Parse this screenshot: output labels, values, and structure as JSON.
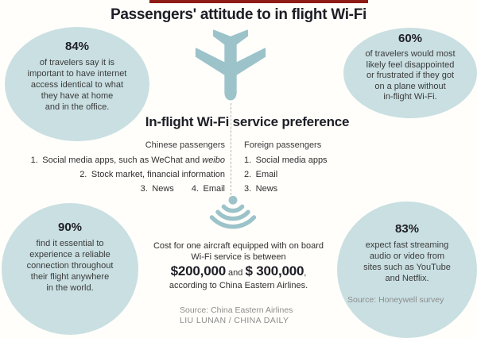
{
  "title": "Passengers' attitude to in flight Wi-Fi",
  "colors": {
    "accent_red": "#8e1b14",
    "bubble_blue": "#c9dfe2",
    "icon_teal": "#9cc3ca",
    "heading_dark": "#1d1e26",
    "source_gray": "#8d8d8d"
  },
  "stats": {
    "tl": {
      "percent": "84%",
      "lines": [
        "of travelers say it is",
        "important to have internet",
        "access identical to what",
        "they have at home",
        "and in the office."
      ]
    },
    "tr": {
      "percent": "60%",
      "lines": [
        "of travelers would most",
        "likely feel disappointed",
        "or frustrated if they got",
        "on a plane without",
        "in-flight Wi-Fi."
      ]
    },
    "bl": {
      "percent": "90%",
      "lines": [
        "find it essential to",
        "experience a reliable",
        "connection throughout",
        "their flight anywhere",
        "in the world."
      ]
    },
    "br": {
      "percent": "83%",
      "lines": [
        "expect fast streaming",
        "audio or video from",
        "sites such as YouTube",
        "and Netflix."
      ],
      "source": "Source: Honeywell survey"
    }
  },
  "preference": {
    "heading": "In-flight Wi-Fi service preference",
    "chinese": {
      "header": "Chinese passengers",
      "item1_pre": "1. Social media apps, such as WeChat and ",
      "item1_em": "weibo",
      "item2": "2. Stock market, financial information",
      "item3a": "3. News",
      "item3b": "4. Email"
    },
    "foreign": {
      "header": "Foreign passengers",
      "items": [
        "1. Social media apps",
        "2. Email",
        "3. News"
      ]
    }
  },
  "cost": {
    "line1": "Cost for one aircraft equipped with on board",
    "line2": "Wi-Fi service is between",
    "amount1": "$200,000",
    "conjunction": " and ",
    "amount2": "$ 300,000",
    "punct": ",",
    "line3": "according to China Eastern Airlines."
  },
  "footer": {
    "source": "Source: China Eastern Airlines",
    "credit": "LIU LUNAN / CHINA DAILY"
  },
  "icons": {
    "plane": "airplane-icon",
    "wifi": "wifi-signal-icon",
    "connector": "dashed-connector-line"
  }
}
